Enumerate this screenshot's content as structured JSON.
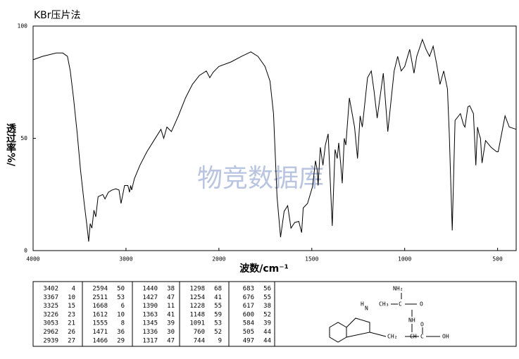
{
  "chart_data": {
    "type": "line",
    "title": "KBr压片法",
    "xlabel": "波数/cm⁻¹",
    "ylabel": "透过率%/",
    "watermark": "物竞数据库",
    "color": "#000000",
    "x": [
      4000,
      3900,
      3750,
      3680,
      3630,
      3600,
      3565,
      3525,
      3490,
      3450,
      3420,
      3402,
      3385,
      3367,
      3345,
      3325,
      3300,
      3250,
      3226,
      3190,
      3150,
      3110,
      3075,
      3053,
      3015,
      2980,
      2962,
      2950,
      2939,
      2910,
      2850,
      2775,
      2700,
      2624,
      2594,
      2560,
      2511,
      2436,
      2360,
      2285,
      2210,
      2135,
      2098,
      2060,
      2000,
      1935,
      1878,
      1828,
      1790,
      1752,
      1725,
      1706,
      1687,
      1668,
      1649,
      1630,
      1612,
      1592,
      1570,
      1555,
      1546,
      1523,
      1496,
      1480,
      1471,
      1466,
      1454,
      1440,
      1427,
      1412,
      1390,
      1375,
      1363,
      1355,
      1345,
      1336,
      1325,
      1317,
      1298,
      1270,
      1254,
      1240,
      1228,
      1200,
      1180,
      1165,
      1148,
      1115,
      1091,
      1057,
      1038,
      1019,
      1000,
      973,
      950,
      935,
      905,
      885,
      866,
      847,
      828,
      810,
      790,
      770,
      760,
      744,
      729,
      700,
      683,
      676,
      660,
      650,
      630,
      617,
      608,
      600,
      592,
      584,
      565,
      535,
      505,
      497,
      460,
      437,
      400
    ],
    "values": [
      85,
      86.5,
      88,
      88,
      86.5,
      80,
      68,
      52,
      36,
      21,
      11,
      4,
      12,
      10,
      18,
      15,
      24,
      25,
      23,
      26,
      27,
      27.5,
      27,
      21,
      29,
      29,
      26,
      29,
      27,
      32,
      38,
      44,
      49,
      54,
      50,
      55,
      53,
      60,
      68,
      74,
      78,
      80,
      77,
      79.5,
      82,
      84,
      86.5,
      88.5,
      86.5,
      82,
      75.5,
      61,
      24,
      6,
      17.5,
      20,
      10,
      12.5,
      13,
      8,
      19,
      21,
      28.5,
      40,
      36,
      29,
      46,
      38,
      47,
      52,
      11,
      45,
      41,
      48,
      39,
      30,
      50,
      47,
      68,
      55,
      41,
      60,
      55,
      77,
      80,
      71,
      59,
      79,
      53,
      80,
      86.5,
      80,
      82,
      89.6,
      79,
      86.5,
      94,
      89.6,
      86.5,
      91,
      83,
      74,
      80,
      72,
      52,
      9,
      58,
      61,
      56,
      55,
      64,
      64.5,
      61,
      38,
      55,
      52,
      50,
      39,
      49,
      46,
      44,
      44,
      60,
      55,
      54
    ],
    "xlim": [
      4000,
      400
    ],
    "x_break": 2000,
    "xticks": [
      4000,
      3000,
      2000,
      1500,
      1000,
      500
    ],
    "ylim": [
      0,
      100
    ],
    "yticks": [
      0,
      50,
      100
    ]
  },
  "peak_table": {
    "columns": [
      [
        [
          "3402",
          "4"
        ],
        [
          "3367",
          "10"
        ],
        [
          "3325",
          "15"
        ],
        [
          "3226",
          "23"
        ],
        [
          "3053",
          "21"
        ],
        [
          "2962",
          "26"
        ],
        [
          "2939",
          "27"
        ]
      ],
      [
        [
          "2594",
          "50"
        ],
        [
          "2511",
          "53"
        ],
        [
          "1668",
          "6"
        ],
        [
          "1612",
          "10"
        ],
        [
          "1555",
          "8"
        ],
        [
          "1471",
          "36"
        ],
        [
          "1466",
          "29"
        ]
      ],
      [
        [
          "1440",
          "38"
        ],
        [
          "1427",
          "47"
        ],
        [
          "1390",
          "11"
        ],
        [
          "1363",
          "41"
        ],
        [
          "1345",
          "39"
        ],
        [
          "1336",
          "30"
        ],
        [
          "1317",
          "47"
        ]
      ],
      [
        [
          "1298",
          "68"
        ],
        [
          "1254",
          "41"
        ],
        [
          "1228",
          "55"
        ],
        [
          "1148",
          "59"
        ],
        [
          "1091",
          "53"
        ],
        [
          "760",
          "52"
        ],
        [
          "744",
          "9"
        ]
      ],
      [
        [
          "683",
          "56"
        ],
        [
          "676",
          "55"
        ],
        [
          "617",
          "38"
        ],
        [
          "600",
          "52"
        ],
        [
          "584",
          "39"
        ],
        [
          "505",
          "44"
        ],
        [
          "497",
          "44"
        ]
      ]
    ]
  },
  "structure": {
    "labels": [
      "NH₂",
      "H",
      "N",
      "CH₃",
      "C",
      "O",
      "NH",
      "CH₂",
      "CH",
      "C",
      "O",
      "OH"
    ]
  }
}
